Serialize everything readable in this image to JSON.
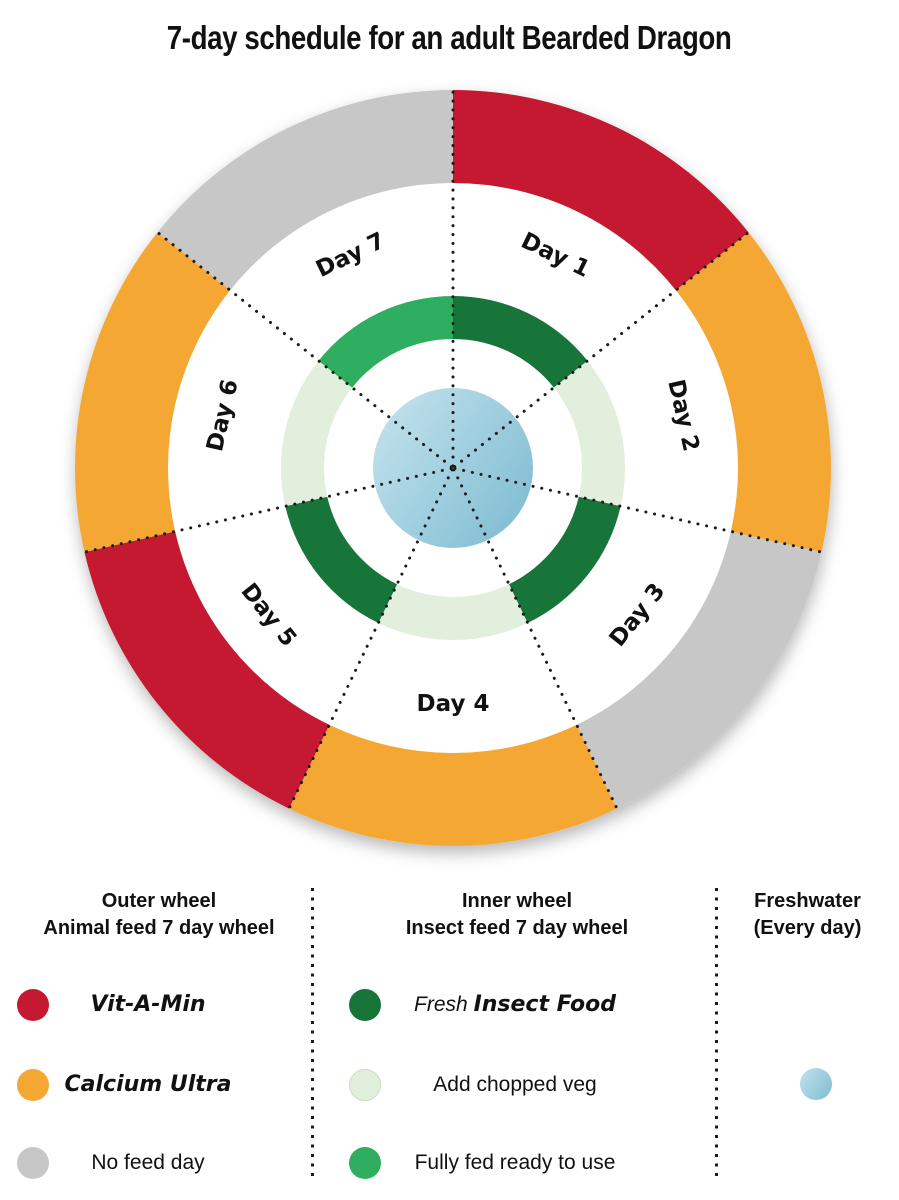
{
  "title": "7-day schedule for an adult Bearded Dragon",
  "colors": {
    "red": "#c41930",
    "orange": "#f5a733",
    "gray": "#c7c7c8",
    "dark_green": "#17753a",
    "pale_green": "#e2efdc",
    "bright_green": "#2fad60",
    "blue_light": "#c2e2ec",
    "blue_dark": "#7fbcd2",
    "line": "#1b1b1b"
  },
  "wheel": {
    "days": [
      {
        "label": "Day 1",
        "outer": "red",
        "inner": "dark_green"
      },
      {
        "label": "Day 2",
        "outer": "orange",
        "inner": "pale_green"
      },
      {
        "label": "Day 3",
        "outer": "gray",
        "inner": "dark_green"
      },
      {
        "label": "Day 4",
        "outer": "orange",
        "inner": "pale_green"
      },
      {
        "label": "Day 5",
        "outer": "red",
        "inner": "dark_green"
      },
      {
        "label": "Day 6",
        "outer": "orange",
        "inner": "pale_green"
      },
      {
        "label": "Day 7",
        "outer": "gray",
        "inner": "bright_green"
      }
    ],
    "center": "freshwater"
  },
  "legend": {
    "outer": {
      "title_line1": "Outer wheel",
      "title_line2": "Animal feed 7 day wheel",
      "items": [
        {
          "color": "red",
          "label": "Vit-A-Min"
        },
        {
          "color": "orange",
          "label": "Calcium Ultra"
        },
        {
          "color": "gray",
          "label": "No feed day"
        }
      ]
    },
    "inner": {
      "title_line1": "Inner wheel",
      "title_line2": "Insect feed 7 day wheel",
      "items": [
        {
          "color": "dark_green",
          "label_prefix": "Fresh ",
          "label": "Insect Food"
        },
        {
          "color": "pale_green",
          "label": "Add chopped veg"
        },
        {
          "color": "bright_green",
          "label": "Fully fed ready to use"
        }
      ]
    },
    "freshwater": {
      "title_line1": "Freshwater",
      "title_line2": "(Every day)",
      "dot_color": "blue"
    }
  }
}
